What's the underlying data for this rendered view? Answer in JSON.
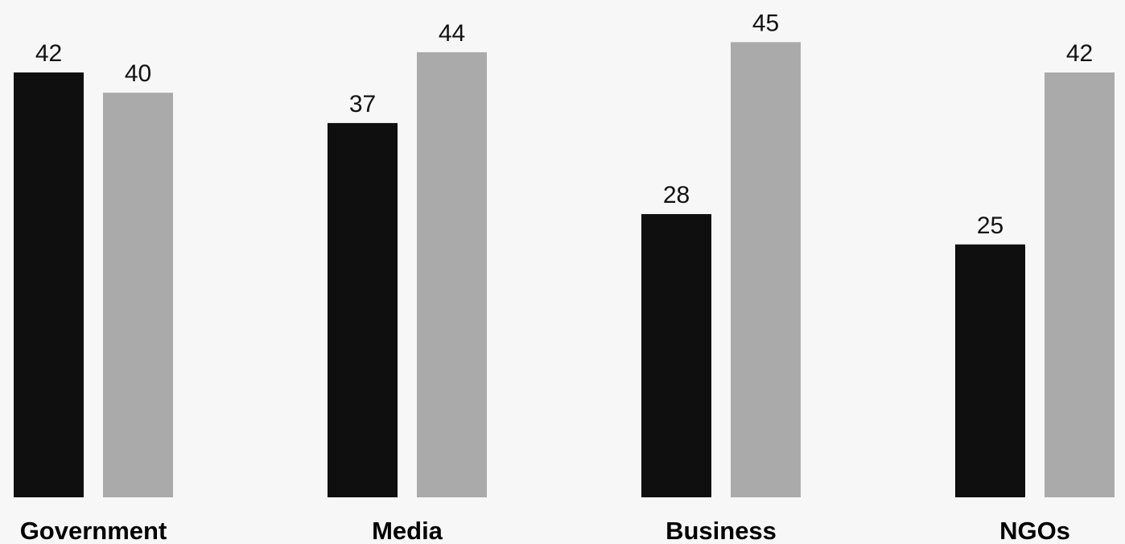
{
  "chart_data": {
    "type": "bar",
    "categories": [
      "Government",
      "Media",
      "Business",
      "NGOs"
    ],
    "series": [
      {
        "values": [
          42,
          37,
          28,
          25
        ],
        "color": "#0f0f0f"
      },
      {
        "values": [
          40,
          44,
          45,
          42
        ],
        "color": "#aaaaaa"
      }
    ],
    "ylim": [
      0,
      45
    ],
    "grid": false,
    "legend": "none",
    "background": "#f7f7f7"
  }
}
